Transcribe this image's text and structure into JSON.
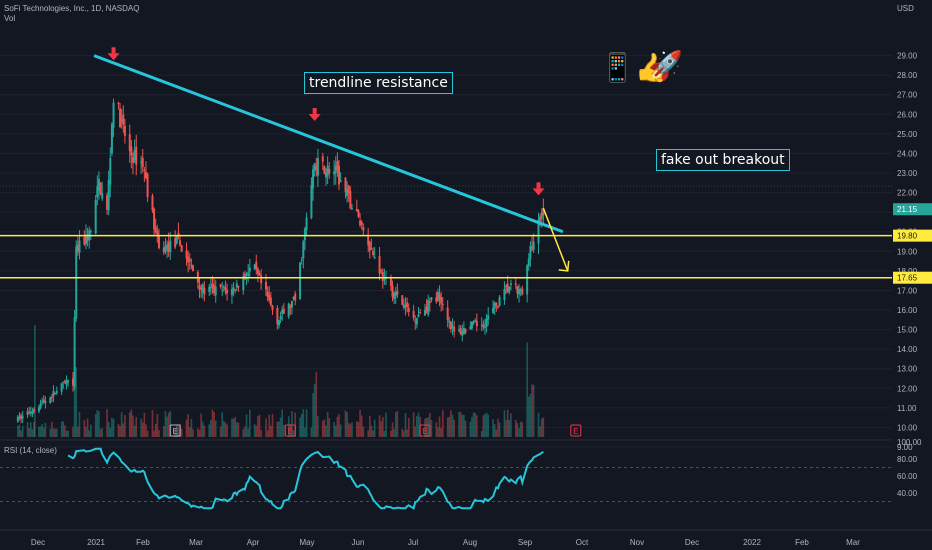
{
  "header": {
    "symbol_line": "SoFi Technologies, Inc., 1D, NASDAQ",
    "volume_label": "Vol"
  },
  "annotations": {
    "trendline_label": "trendline resistance",
    "fakeout_label": "fake out breakout",
    "emoji_1": "📱👍",
    "emoji_2": "🚀"
  },
  "colors": {
    "background": "#131722",
    "up": "#26a69a",
    "down": "#ef5350",
    "trendline": "#26c6da",
    "level": "#ffeb3b",
    "rsi": "#26c6da",
    "marker": "#f23645"
  },
  "indicator": {
    "rsi_label": "RSI (14, close)",
    "rsi_ticks": [
      "100.00",
      "80.00",
      "60.00",
      "40.00"
    ]
  },
  "chart_data": {
    "type": "candlestick",
    "y_unit": "USD",
    "ylim": [
      8.5,
      30
    ],
    "y_ticks": [
      "29.00",
      "28.00",
      "27.00",
      "26.00",
      "25.00",
      "24.00",
      "23.00",
      "22.00",
      "21.00",
      "20.00",
      "19.00",
      "18.00",
      "17.00",
      "16.00",
      "15.00",
      "14.00",
      "13.00",
      "12.00",
      "11.00",
      "10.00",
      "9.00"
    ],
    "x_ticks": [
      "Dec",
      "2021",
      "Feb",
      "Mar",
      "Apr",
      "May",
      "Jun",
      "Jul",
      "Aug",
      "Sep",
      "Oct",
      "Nov",
      "Dec",
      "2022",
      "Feb",
      "Mar"
    ],
    "levels": [
      {
        "price": 19.8,
        "label": "19.80"
      },
      {
        "price": 17.65,
        "label": "17.65"
      }
    ],
    "current_price_label": "21.15",
    "trendline": {
      "from": {
        "date": "2021-01-17",
        "price": 29.0
      },
      "to": {
        "date": "2021-11-02",
        "price": 20.0
      }
    },
    "breakout_arrow": {
      "from": {
        "date": "2021-10-21",
        "price": 21.2
      },
      "to": {
        "date": "2021-11-05",
        "price": 18.0
      }
    },
    "peak_markers": [
      {
        "date": "2021-01-29",
        "price": 28.3
      },
      {
        "date": "2021-06-02",
        "price": 25.2
      },
      {
        "date": "2021-10-18",
        "price": 21.4
      }
    ],
    "earnings_markers": [
      {
        "date": "2021-03-08",
        "type": "E"
      },
      {
        "date": "2021-05-18",
        "type": "E"
      },
      {
        "date": "2021-08-09",
        "type": "E"
      },
      {
        "date": "2021-11-10",
        "type": "E"
      }
    ],
    "anchors": [
      {
        "date": "2020-12-01",
        "price": 10.4
      },
      {
        "date": "2020-12-20",
        "price": 11.5
      },
      {
        "date": "2020-12-31",
        "price": 12.3
      },
      {
        "date": "2021-01-04",
        "price": 12.0
      },
      {
        "date": "2021-01-06",
        "price": 19.0
      },
      {
        "date": "2021-01-15",
        "price": 20.0
      },
      {
        "date": "2021-01-20",
        "price": 22.5
      },
      {
        "date": "2021-01-25",
        "price": 21.0
      },
      {
        "date": "2021-01-29",
        "price": 27.0
      },
      {
        "date": "2021-02-08",
        "price": 24.0
      },
      {
        "date": "2021-02-16",
        "price": 23.5
      },
      {
        "date": "2021-02-26",
        "price": 19.0
      },
      {
        "date": "2021-03-10",
        "price": 19.5
      },
      {
        "date": "2021-03-25",
        "price": 17.0
      },
      {
        "date": "2021-04-12",
        "price": 17.0
      },
      {
        "date": "2021-04-25",
        "price": 18.2
      },
      {
        "date": "2021-05-10",
        "price": 15.5
      },
      {
        "date": "2021-05-21",
        "price": 16.5
      },
      {
        "date": "2021-06-02",
        "price": 23.5
      },
      {
        "date": "2021-06-15",
        "price": 23.0
      },
      {
        "date": "2021-06-30",
        "price": 20.5
      },
      {
        "date": "2021-07-15",
        "price": 17.5
      },
      {
        "date": "2021-08-02",
        "price": 15.6
      },
      {
        "date": "2021-08-18",
        "price": 16.8
      },
      {
        "date": "2021-08-27",
        "price": 14.8
      },
      {
        "date": "2021-09-15",
        "price": 15.4
      },
      {
        "date": "2021-09-30",
        "price": 17.2
      },
      {
        "date": "2021-10-08",
        "price": 16.8
      },
      {
        "date": "2021-10-13",
        "price": 19.0
      },
      {
        "date": "2021-10-21",
        "price": 21.15
      }
    ]
  }
}
